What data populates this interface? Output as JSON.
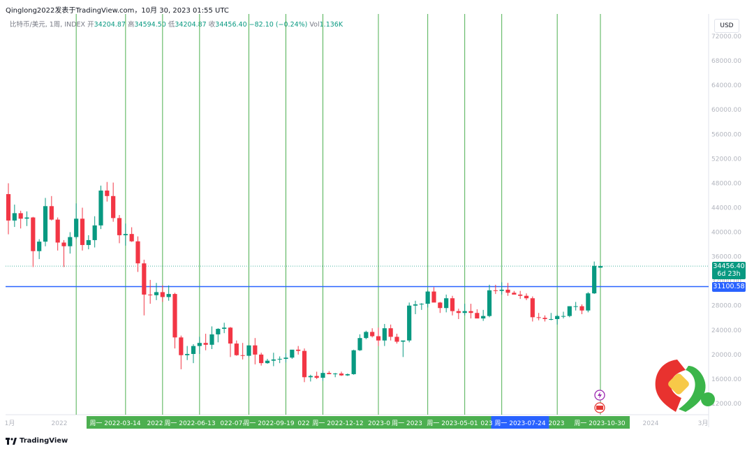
{
  "header": {
    "publisher": "Qinglong2022发表于TradingView.com，10月 30, 2023 01:55 UTC"
  },
  "symbol_info": {
    "title": "比特币/美元, 1周, INDEX",
    "open_label": "开",
    "open": "34204.87",
    "high_label": "高",
    "high": "34594.50",
    "low_label": "低",
    "low": "34204.87",
    "close_label": "收",
    "close": "34456.40",
    "change": "−82.10 (−0.24%)",
    "vol_label": "Vol",
    "vol": "1.136K"
  },
  "currency": "USD",
  "last_price_badge": {
    "price": "34456.40",
    "countdown": "6d 23h"
  },
  "hline_badge": "31100.58",
  "footer": {
    "brand": "TradingView"
  },
  "colors": {
    "up": "#089981",
    "down": "#f23645",
    "vline": "#4caf50",
    "hline": "#2962ff",
    "axis_text": "#b2b5be"
  },
  "chart_data": {
    "type": "candlestick",
    "y_ticks": [
      "72000.00",
      "68000.00",
      "64000.00",
      "60000.00",
      "56000.00",
      "52000.00",
      "48000.00",
      "44000.00",
      "40000.00",
      "36000.00",
      "32000.00",
      "28000.00",
      "24000.00",
      "20000.00",
      "16000.00",
      "12000.00"
    ],
    "y_range": [
      10000,
      74000
    ],
    "x_labels": [
      "1月",
      "2022",
      "周一 2022-03-14",
      "2022",
      "周一 2022-06-13",
      "022-07-",
      "周一 2022-09-19",
      "022",
      "周一 2022-12-12",
      "2023-0",
      "周一 2023",
      "周一 2023-05-01",
      "023",
      "周一 2023-07-24",
      "2023",
      "周一 2023-10-30",
      "2024",
      "3月"
    ],
    "highlight_x_label": "周一 2023-07-24",
    "horizontal_line": 31100.58,
    "last_price": 34456.4,
    "candles": [
      [
        46216,
        47990,
        39650,
        41900
      ],
      [
        41900,
        44500,
        40850,
        43100
      ],
      [
        43100,
        43500,
        40600,
        42200
      ],
      [
        42200,
        43400,
        41000,
        42400
      ],
      [
        42400,
        42500,
        34300,
        36900
      ],
      [
        36900,
        38850,
        35600,
        38450
      ],
      [
        38450,
        45600,
        37700,
        44250
      ],
      [
        44250,
        45900,
        41900,
        42050
      ],
      [
        42050,
        42400,
        37000,
        38300
      ],
      [
        38300,
        38700,
        34300,
        37700
      ],
      [
        37700,
        40000,
        36500,
        39200
      ],
      [
        39200,
        44700,
        38900,
        42200
      ],
      [
        42200,
        44000,
        37000,
        37900
      ],
      [
        37900,
        39500,
        37200,
        38700
      ],
      [
        38700,
        42600,
        37500,
        41100
      ],
      [
        41100,
        47600,
        40500,
        46800
      ],
      [
        46800,
        48200,
        45000,
        45900
      ],
      [
        45900,
        48100,
        41700,
        42300
      ],
      [
        42300,
        42800,
        38200,
        39500
      ],
      [
        39500,
        41400,
        37800,
        39700
      ],
      [
        39700,
        40800,
        38400,
        38500
      ],
      [
        38500,
        39300,
        33500,
        34900
      ],
      [
        34900,
        35500,
        26400,
        29800
      ],
      [
        29800,
        32200,
        28300,
        29700
      ],
      [
        29700,
        31700,
        28900,
        30200
      ],
      [
        30200,
        31300,
        28600,
        29400
      ],
      [
        29400,
        31300,
        28800,
        29900
      ],
      [
        29900,
        30100,
        21000,
        22800
      ],
      [
        22800,
        23100,
        17600,
        19900
      ],
      [
        19900,
        21400,
        19100,
        20100
      ],
      [
        20100,
        21700,
        18600,
        21400
      ],
      [
        21400,
        22900,
        20100,
        21900
      ],
      [
        21900,
        23400,
        20700,
        21600
      ],
      [
        21600,
        24600,
        20900,
        23300
      ],
      [
        23300,
        24300,
        22000,
        24200
      ],
      [
        24200,
        25200,
        23500,
        24400
      ],
      [
        24400,
        24500,
        19600,
        21800
      ],
      [
        21800,
        22300,
        19800,
        19900
      ],
      [
        19900,
        21900,
        19200,
        19800
      ],
      [
        19800,
        20900,
        19600,
        21500
      ],
      [
        21500,
        22700,
        18400,
        20000
      ],
      [
        20000,
        20300,
        18200,
        18600
      ],
      [
        18600,
        19300,
        18500,
        19000
      ],
      [
        19000,
        20300,
        18100,
        19200
      ],
      [
        19200,
        19700,
        18600,
        19300
      ],
      [
        19300,
        20200,
        18700,
        19500
      ],
      [
        19500,
        20400,
        19300,
        20800
      ],
      [
        20800,
        21400,
        20000,
        20600
      ],
      [
        20600,
        21000,
        15500,
        16300
      ],
      [
        16300,
        16700,
        15600,
        16500
      ],
      [
        16500,
        17200,
        16000,
        16200
      ],
      [
        16200,
        17400,
        15700,
        17000
      ],
      [
        17000,
        17300,
        16800,
        16800
      ],
      [
        16800,
        17000,
        16300,
        16900
      ],
      [
        16900,
        17200,
        16500,
        16600
      ],
      [
        16600,
        16900,
        16500,
        16800
      ],
      [
        16800,
        20800,
        16700,
        20700
      ],
      [
        20700,
        23300,
        20600,
        22700
      ],
      [
        22700,
        23900,
        22500,
        23700
      ],
      [
        23700,
        24300,
        22800,
        23000
      ],
      [
        23000,
        24400,
        21400,
        22300
      ],
      [
        22300,
        25000,
        21400,
        24300
      ],
      [
        24300,
        24900,
        22300,
        22900
      ],
      [
        22900,
        23400,
        21800,
        22100
      ],
      [
        22100,
        22200,
        19600,
        22300
      ],
      [
        22300,
        28500,
        22000,
        28000
      ],
      [
        28000,
        28800,
        26600,
        28200
      ],
      [
        28200,
        28400,
        27300,
        28300
      ],
      [
        28300,
        30500,
        27700,
        30300
      ],
      [
        30300,
        31000,
        28600,
        28500
      ],
      [
        28500,
        28600,
        26800,
        27600
      ],
      [
        27600,
        29800,
        26900,
        29200
      ],
      [
        29200,
        29600,
        26400,
        27100
      ],
      [
        27100,
        27500,
        25800,
        26800
      ],
      [
        26800,
        28300,
        26400,
        27100
      ],
      [
        27100,
        28300,
        25900,
        26800
      ],
      [
        26800,
        27400,
        26500,
        25900
      ],
      [
        25900,
        27300,
        25500,
        26300
      ],
      [
        26300,
        31400,
        26100,
        30500
      ],
      [
        30500,
        31400,
        29900,
        30400
      ],
      [
        30400,
        31800,
        29800,
        30600
      ],
      [
        30600,
        31700,
        29600,
        30100
      ],
      [
        30100,
        30400,
        29900,
        29800
      ],
      [
        29800,
        30400,
        29100,
        29600
      ],
      [
        29600,
        30000,
        28900,
        29200
      ],
      [
        29200,
        29500,
        25400,
        26100
      ],
      [
        26100,
        26800,
        25600,
        26000
      ],
      [
        26000,
        26400,
        25400,
        25800
      ],
      [
        25800,
        26800,
        25600,
        25800
      ],
      [
        25800,
        26500,
        24900,
        26300
      ],
      [
        26300,
        27000,
        25900,
        26300
      ],
      [
        26300,
        27900,
        26100,
        27900
      ],
      [
        27900,
        28600,
        27200,
        27900
      ],
      [
        27900,
        28200,
        26600,
        27200
      ],
      [
        27200,
        30200,
        26900,
        30000
      ],
      [
        30000,
        35200,
        29900,
        34500
      ],
      [
        34200,
        34600,
        34200,
        34456
      ]
    ],
    "vertical_lines_at_candle_index": [
      11,
      19,
      25,
      31,
      39,
      45,
      51,
      60,
      68,
      74,
      80,
      89,
      96
    ]
  }
}
